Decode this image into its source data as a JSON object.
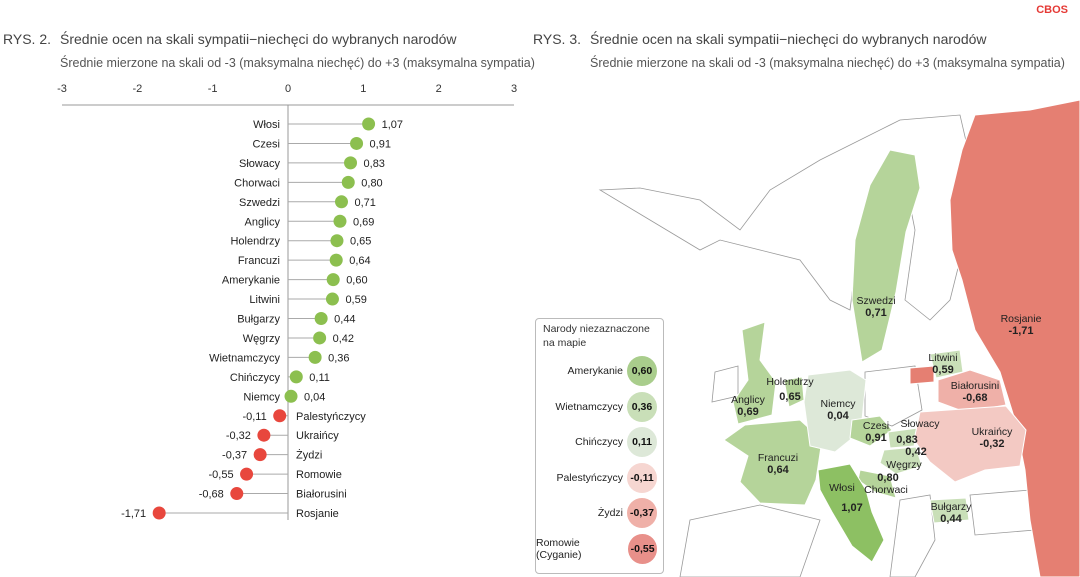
{
  "brand": "CBOS",
  "fig2": {
    "number": "RYS. 2.",
    "title": "Średnie ocen na skali sympatii−niechęci do wybranych narodów",
    "subtitle": "Średnie mierzone na skali od -3 (maksymalna niechęć) do +3 (maksymalna sympatia)"
  },
  "fig3": {
    "number": "RYS. 3.",
    "title": "Średnie ocen na skali sympatii−niechęci do wybranych narodów",
    "subtitle": "Średnie mierzone na skali od -3 (maksymalna niechęć) do +3 (maksymalna sympatia)"
  },
  "chart_data": {
    "type": "scatter",
    "title": "Średnie ocen na skali sympatii−niechęci do wybranych narodów",
    "xlim": [
      -3,
      3
    ],
    "xticks": [
      "-3",
      "-2",
      "-1",
      "0",
      "1",
      "2",
      "3"
    ],
    "positive_color": "#8cbf4f",
    "negative_color": "#e8473d",
    "categories": [
      "Włosi",
      "Czesi",
      "Słowacy",
      "Chorwaci",
      "Szwedzi",
      "Anglicy",
      "Holendrzy",
      "Francuzi",
      "Amerykanie",
      "Litwini",
      "Bułgarzy",
      "Węgrzy",
      "Wietnamczycy",
      "Chińczycy",
      "Niemcy",
      "Palestyńczycy",
      "Ukraińcy",
      "Żydzi",
      "Romowie",
      "Białorusini",
      "Rosjanie"
    ],
    "values": [
      1.07,
      0.91,
      0.83,
      0.8,
      0.71,
      0.69,
      0.65,
      0.64,
      0.6,
      0.59,
      0.44,
      0.42,
      0.36,
      0.11,
      0.04,
      -0.11,
      -0.32,
      -0.37,
      -0.55,
      -0.68,
      -1.71
    ],
    "value_labels": [
      "1,07",
      "0,91",
      "0,83",
      "0,80",
      "0,71",
      "0,69",
      "0,65",
      "0,64",
      "0,60",
      "0,59",
      "0,44",
      "0,42",
      "0,36",
      "0,11",
      "0,04",
      "-0,11",
      "-0,32",
      "-0,37",
      "-0,55",
      "-0,68",
      "-1,71"
    ]
  },
  "map": {
    "regions": [
      {
        "name": "Rosjanie",
        "value": "-1,71"
      },
      {
        "name": "Szwedzi",
        "value": "0,71"
      },
      {
        "name": "Litwini",
        "value": "0,59"
      },
      {
        "name": "Białorusini",
        "value": "-0,68"
      },
      {
        "name": "Holendrzy",
        "value": "0,65"
      },
      {
        "name": "Anglicy",
        "value": "0,69"
      },
      {
        "name": "Niemcy",
        "value": "0,04"
      },
      {
        "name": "Czesi",
        "value": "0,91"
      },
      {
        "name": "Słowacy",
        "value": "0,83"
      },
      {
        "name": "Ukraińcy",
        "value": "-0,32"
      },
      {
        "name": "Węgrzy",
        "value": "0,42"
      },
      {
        "name": "Francuzi",
        "value": "0,64"
      },
      {
        "name": "Chorwaci",
        "value": "0,80"
      },
      {
        "name": "Włosi",
        "value": "1,07"
      },
      {
        "name": "Bułgarzy",
        "value": "0,44"
      }
    ],
    "legend": {
      "title": "Narody niezaznaczone na mapie",
      "items": [
        {
          "name": "Amerykanie",
          "value": "0,60",
          "color": "#a9cd8c"
        },
        {
          "name": "Wietnamczycy",
          "value": "0,36",
          "color": "#c9dfb8"
        },
        {
          "name": "Chińczycy",
          "value": "0,11",
          "color": "#dde8d8"
        },
        {
          "name": "Palestyńczycy",
          "value": "-0,11",
          "color": "#f6d6d1"
        },
        {
          "name": "Żydzi",
          "value": "-0,37",
          "color": "#efb0a8"
        },
        {
          "name": "Romowie (Cyganie)",
          "value": "-0,55",
          "color": "#e8908a"
        }
      ]
    }
  }
}
